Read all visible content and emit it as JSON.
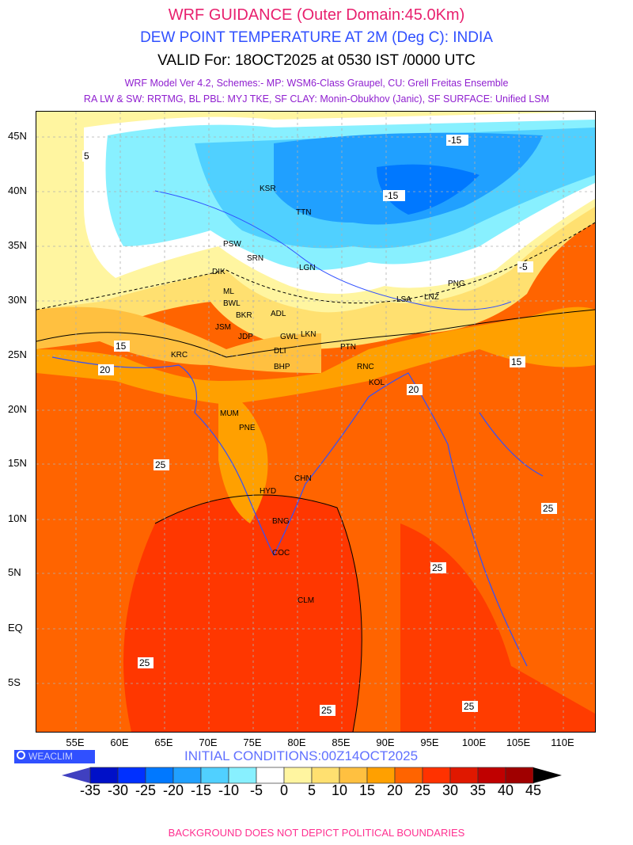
{
  "header": {
    "title": "WRF GUIDANCE (Outer Domain:45.0Km)",
    "subtitle": "DEW POINT TEMPERATURE AT 2M (Deg C): INDIA",
    "valid": "VALID For: 18OCT2025 at 0530 IST /0000 UTC",
    "model_line1": "WRF Model Ver 4.2, Schemes:- MP: WSM6-Class Graupel, CU: Grell Freitas Ensemble",
    "model_line2": "RA LW & SW: RRTMG, BL PBL: MYJ TKE, SF CLAY: Monin-Obukhov (Janic), SF SURFACE: Unified LSM"
  },
  "axes": {
    "lat_labels": [
      "45N",
      "40N",
      "35N",
      "30N",
      "25N",
      "20N",
      "15N",
      "10N",
      "5N",
      "EQ",
      "5S"
    ],
    "lon_labels": [
      "55E",
      "60E",
      "65E",
      "70E",
      "75E",
      "80E",
      "85E",
      "90E",
      "95E",
      "100E",
      "105E",
      "110E"
    ]
  },
  "cities": [
    "KSR",
    "TTN",
    "PSW",
    "SRN",
    "LGN",
    "DIK",
    "ML",
    "BWL",
    "PNG",
    "LSA",
    "LNZ",
    "JSM",
    "JDP",
    "BKR",
    "ADL",
    "GWL",
    "LKN",
    "PTN",
    "BHP",
    "RNC",
    "KOL",
    "MUM",
    "PNE",
    "HYD",
    "BNG",
    "CHN",
    "COC",
    "CLM",
    "KRC",
    "DLI"
  ],
  "logo": "WEACLIM",
  "initial_conditions": "INITIAL CONDITIONS:00Z14OCT2025",
  "colorbar": {
    "labels": [
      "-35",
      "-30",
      "-25",
      "-20",
      "-15",
      "-10",
      "-5",
      "0",
      "5",
      "10",
      "15",
      "20",
      "25",
      "30",
      "35",
      "40",
      "45"
    ],
    "colors": [
      "#0010c8",
      "#0030ff",
      "#0078ff",
      "#20a0ff",
      "#50d0ff",
      "#88f0ff",
      "#ffffff",
      "#fff5a0",
      "#ffe070",
      "#ffc040",
      "#ffa000",
      "#ff6400",
      "#ff3200",
      "#e01800",
      "#c00000",
      "#a00000"
    ],
    "under_color": "#4040c0",
    "over_color": "#000000"
  },
  "footer": "BACKGROUND DOES NOT DEPICT POLITICAL BOUNDARIES"
}
